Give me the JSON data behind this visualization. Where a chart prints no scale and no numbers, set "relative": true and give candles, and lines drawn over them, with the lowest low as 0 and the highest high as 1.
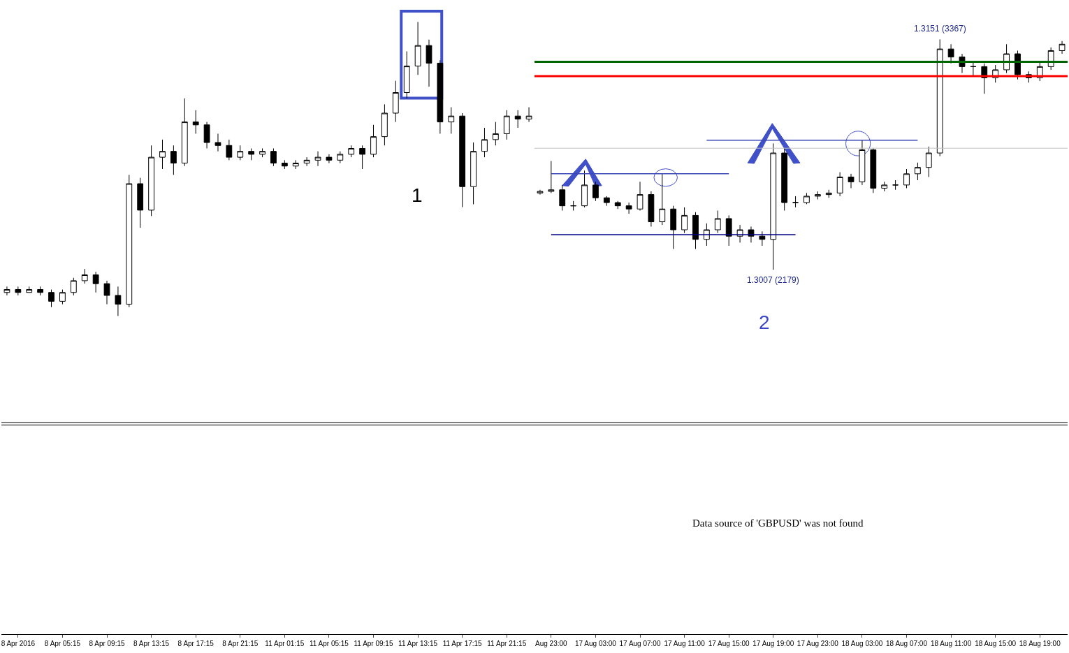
{
  "chart_data": [
    {
      "type": "candlestick",
      "relative": true,
      "tick_labels": "x",
      "categories": [
        null,
        "8 Apr 2016",
        null,
        null,
        null,
        "8 Apr 05:15",
        null,
        null,
        null,
        "8 Apr 09:15",
        null,
        null,
        null,
        "8 Apr 13:15",
        null,
        null,
        null,
        "8 Apr 17:15",
        null,
        null,
        null,
        "8 Apr 21:15",
        null,
        null,
        null,
        "11 Apr 01:15",
        null,
        null,
        null,
        "11 Apr 05:15",
        null,
        null,
        null,
        "11 Apr 09:15",
        null,
        null,
        null,
        "11 Apr 13:15",
        null,
        null,
        null,
        "11 Apr 17:15",
        null,
        null,
        null,
        "11 Apr 21:15",
        null,
        null
      ],
      "ohlc": [
        [
          0.08,
          0.1,
          0.07,
          0.09
        ],
        [
          0.09,
          0.1,
          0.07,
          0.08
        ],
        [
          0.08,
          0.1,
          0.08,
          0.09
        ],
        [
          0.09,
          0.1,
          0.07,
          0.08
        ],
        [
          0.08,
          0.09,
          0.03,
          0.05
        ],
        [
          0.05,
          0.09,
          0.04,
          0.08
        ],
        [
          0.08,
          0.13,
          0.07,
          0.12
        ],
        [
          0.12,
          0.16,
          0.11,
          0.14
        ],
        [
          0.14,
          0.15,
          0.08,
          0.11
        ],
        [
          0.11,
          0.12,
          0.04,
          0.07
        ],
        [
          0.07,
          0.1,
          0.0,
          0.04
        ],
        [
          0.04,
          0.48,
          0.03,
          0.45
        ],
        [
          0.45,
          0.47,
          0.3,
          0.36
        ],
        [
          0.36,
          0.58,
          0.34,
          0.54
        ],
        [
          0.54,
          0.6,
          0.5,
          0.56
        ],
        [
          0.56,
          0.58,
          0.48,
          0.52
        ],
        [
          0.52,
          0.74,
          0.51,
          0.66
        ],
        [
          0.66,
          0.7,
          0.62,
          0.65
        ],
        [
          0.65,
          0.66,
          0.57,
          0.59
        ],
        [
          0.59,
          0.62,
          0.56,
          0.58
        ],
        [
          0.58,
          0.6,
          0.53,
          0.54
        ],
        [
          0.54,
          0.58,
          0.53,
          0.56
        ],
        [
          0.56,
          0.57,
          0.53,
          0.55
        ],
        [
          0.55,
          0.57,
          0.54,
          0.56
        ],
        [
          0.56,
          0.57,
          0.51,
          0.52
        ],
        [
          0.52,
          0.53,
          0.5,
          0.51
        ],
        [
          0.51,
          0.53,
          0.5,
          0.52
        ],
        [
          0.52,
          0.54,
          0.51,
          0.53
        ],
        [
          0.53,
          0.56,
          0.51,
          0.54
        ],
        [
          0.54,
          0.55,
          0.52,
          0.53
        ],
        [
          0.53,
          0.56,
          0.52,
          0.55
        ],
        [
          0.55,
          0.58,
          0.54,
          0.57
        ],
        [
          0.57,
          0.58,
          0.5,
          0.55
        ],
        [
          0.55,
          0.65,
          0.54,
          0.61
        ],
        [
          0.61,
          0.72,
          0.58,
          0.69
        ],
        [
          0.69,
          0.8,
          0.66,
          0.76
        ],
        [
          0.76,
          0.9,
          0.74,
          0.85
        ],
        [
          0.85,
          1.0,
          0.82,
          0.92
        ],
        [
          0.92,
          0.94,
          0.78,
          0.86
        ],
        [
          0.86,
          0.87,
          0.62,
          0.66
        ],
        [
          0.66,
          0.71,
          0.62,
          0.68
        ],
        [
          0.68,
          0.69,
          0.37,
          0.44
        ],
        [
          0.44,
          0.59,
          0.38,
          0.56
        ],
        [
          0.56,
          0.64,
          0.54,
          0.6
        ],
        [
          0.6,
          0.66,
          0.58,
          0.62
        ],
        [
          0.62,
          0.7,
          0.6,
          0.68
        ],
        [
          0.68,
          0.7,
          0.64,
          0.67
        ],
        [
          0.67,
          0.71,
          0.66,
          0.68
        ]
      ],
      "annotations": [
        "1"
      ]
    },
    {
      "type": "candlestick",
      "tick_labels": "x",
      "categories": [
        null,
        "Aug 23:00",
        null,
        null,
        null,
        "17 Aug 03:00",
        null,
        null,
        null,
        "17 Aug 07:00",
        null,
        null,
        null,
        "17 Aug 11:00",
        null,
        null,
        null,
        "17 Aug 15:00",
        null,
        null,
        null,
        "17 Aug 19:00",
        null,
        null,
        null,
        "17 Aug 23:00",
        null,
        null,
        null,
        "18 Aug 03:00",
        null,
        null,
        null,
        "18 Aug 07:00",
        null,
        null,
        null,
        "18 Aug 11:00",
        null,
        null,
        null,
        "18 Aug 15:00",
        null,
        null,
        null,
        "18 Aug 19:00",
        null,
        null
      ],
      "ohlc": [
        [
          1.3055,
          1.3057,
          1.3054,
          1.3056
        ],
        [
          1.3056,
          1.3075,
          1.3055,
          1.3057
        ],
        [
          1.3057,
          1.306,
          1.3044,
          1.3047
        ],
        [
          1.3047,
          1.305,
          1.3044,
          1.3047
        ],
        [
          1.3047,
          1.3069,
          1.3046,
          1.306
        ],
        [
          1.306,
          1.3062,
          1.305,
          1.3052
        ],
        [
          1.3052,
          1.3053,
          1.3047,
          1.3049
        ],
        [
          1.3049,
          1.305,
          1.3045,
          1.3047
        ],
        [
          1.3047,
          1.3049,
          1.3042,
          1.3045
        ],
        [
          1.3045,
          1.3062,
          1.3044,
          1.3054
        ],
        [
          1.3054,
          1.3056,
          1.3034,
          1.3037
        ],
        [
          1.3037,
          1.3067,
          1.3035,
          1.3045
        ],
        [
          1.3045,
          1.3047,
          1.302,
          1.3032
        ],
        [
          1.3032,
          1.3046,
          1.303,
          1.3041
        ],
        [
          1.3041,
          1.3043,
          1.302,
          1.3026
        ],
        [
          1.3026,
          1.3036,
          1.3022,
          1.3032
        ],
        [
          1.3032,
          1.3044,
          1.303,
          1.3039
        ],
        [
          1.3039,
          1.3041,
          1.3022,
          1.3028
        ],
        [
          1.3028,
          1.3035,
          1.3024,
          1.3032
        ],
        [
          1.3032,
          1.3034,
          1.3024,
          1.3028
        ],
        [
          1.3028,
          1.3031,
          1.3022,
          1.3026
        ],
        [
          1.3026,
          1.3086,
          1.3007,
          1.308
        ],
        [
          1.308,
          1.3083,
          1.3044,
          1.3049
        ],
        [
          1.3049,
          1.3053,
          1.3046,
          1.3049
        ],
        [
          1.3049,
          1.3055,
          1.3048,
          1.3053
        ],
        [
          1.3053,
          1.3056,
          1.3051,
          1.3054
        ],
        [
          1.3054,
          1.3057,
          1.3052,
          1.3055
        ],
        [
          1.3055,
          1.3068,
          1.3053,
          1.3065
        ],
        [
          1.3065,
          1.3067,
          1.3058,
          1.3062
        ],
        [
          1.3062,
          1.3088,
          1.306,
          1.3082
        ],
        [
          1.3082,
          1.3083,
          1.3055,
          1.3058
        ],
        [
          1.3058,
          1.3062,
          1.3056,
          1.306
        ],
        [
          1.306,
          1.3063,
          1.3057,
          1.306
        ],
        [
          1.306,
          1.307,
          1.3058,
          1.3067
        ],
        [
          1.3067,
          1.3074,
          1.3063,
          1.3071
        ],
        [
          1.3071,
          1.3084,
          1.3065,
          1.308
        ],
        [
          1.308,
          1.3151,
          1.3078,
          1.3145
        ],
        [
          1.3145,
          1.3148,
          1.3136,
          1.314
        ],
        [
          1.314,
          1.3142,
          1.313,
          1.3134
        ],
        [
          1.3134,
          1.3137,
          1.3128,
          1.3134
        ],
        [
          1.3134,
          1.3136,
          1.3117,
          1.3127
        ],
        [
          1.3127,
          1.3135,
          1.3124,
          1.3132
        ],
        [
          1.3132,
          1.3148,
          1.313,
          1.3142
        ],
        [
          1.3142,
          1.3144,
          1.3126,
          1.3129
        ],
        [
          1.3129,
          1.3131,
          1.3124,
          1.3127
        ],
        [
          1.3127,
          1.3137,
          1.3125,
          1.3134
        ],
        [
          1.3134,
          1.3146,
          1.3132,
          1.3144
        ],
        [
          1.3144,
          1.315,
          1.3142,
          1.3148
        ]
      ],
      "series": [
        {
          "type": "line",
          "color": "#000080",
          "values": [
            null,
            1.3029,
            1.3029,
            1.3029,
            1.3029,
            1.3029,
            1.3029,
            1.3029,
            1.3029,
            1.3029,
            1.3029,
            1.3029,
            1.3029,
            1.3029,
            1.3029,
            1.3029,
            1.3029,
            1.3029,
            1.3029,
            1.3029,
            1.3029,
            1.3029,
            1.3029,
            1.3029,
            null,
            null,
            null,
            null,
            null,
            null,
            null,
            null,
            null,
            null,
            null,
            null,
            null,
            null,
            null,
            null,
            null,
            null,
            null,
            null,
            null,
            null,
            null,
            null
          ]
        },
        {
          "type": "line",
          "color": "#3a46b8",
          "values": [
            null,
            1.3067,
            1.3067,
            1.3067,
            1.3067,
            1.3067,
            1.3067,
            1.3067,
            1.3067,
            1.3067,
            1.3067,
            1.3067,
            1.3067,
            1.3067,
            1.3067,
            1.3067,
            1.3067,
            1.3067,
            null,
            null,
            null,
            null,
            null,
            null,
            null,
            null,
            null,
            null,
            null,
            null,
            null,
            null,
            null,
            null,
            null,
            null,
            null,
            null,
            null,
            null,
            null,
            null,
            null,
            null,
            null,
            null,
            null,
            null
          ]
        },
        {
          "type": "line",
          "color": "#3a46b8",
          "values": [
            null,
            null,
            null,
            null,
            null,
            null,
            null,
            null,
            null,
            null,
            null,
            null,
            null,
            null,
            null,
            1.3088,
            1.3088,
            1.3088,
            1.3088,
            1.3088,
            1.3088,
            1.3088,
            1.3088,
            1.3088,
            1.3088,
            1.3088,
            1.3088,
            1.3088,
            1.3088,
            1.3088,
            1.3088,
            1.3088,
            1.3088,
            1.3088,
            1.3088,
            null,
            null,
            null,
            null,
            null,
            null,
            null,
            null,
            null,
            null,
            null,
            null,
            null
          ]
        }
      ],
      "ref_lines": [
        {
          "axis": "y",
          "value": 1.3137,
          "color": "#006400"
        },
        {
          "axis": "y",
          "value": 1.3128,
          "color": "#ff0000"
        },
        {
          "axis": "y",
          "value": 1.3083,
          "color": "#c0c0c0"
        }
      ],
      "annotations": [
        {
          "text": "1.3151 (3367)",
          "y": 1.3151
        },
        {
          "text": "1.3007 (2179)",
          "y": 1.3007
        },
        "2"
      ]
    },
    {
      "type": "other",
      "annotations": [
        "Data source of 'GBPUSD' was not found"
      ]
    }
  ]
}
